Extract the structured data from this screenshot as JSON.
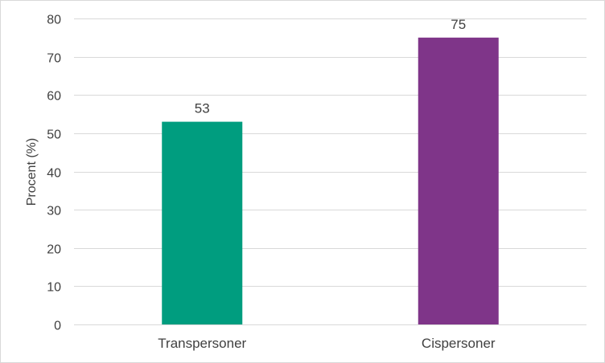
{
  "chart_data": {
    "type": "bar",
    "categories": [
      "Transpersoner",
      "Cispersoner"
    ],
    "values": [
      53,
      75
    ],
    "data_labels": [
      "53",
      "75"
    ],
    "colors": [
      "#009d7f",
      "#7f3589"
    ],
    "ylabel": "Procent (%)",
    "xlabel": "",
    "title": "",
    "ylim": [
      0,
      80
    ],
    "yticks": [
      0,
      10,
      20,
      30,
      40,
      50,
      60,
      70,
      80
    ],
    "ytick_labels": [
      "0",
      "10",
      "20",
      "30",
      "40",
      "50",
      "60",
      "70",
      "80"
    ],
    "grid": true,
    "legend": "none",
    "gridline_color": "#d9d9d9",
    "text_color": "#404040"
  }
}
